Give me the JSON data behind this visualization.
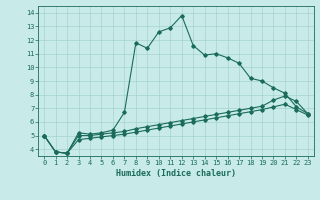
{
  "xlabel": "Humidex (Indice chaleur)",
  "background_color": "#c8ebe9",
  "grid_color": "#9ecece",
  "line_color": "#1a6b5a",
  "xlim": [
    -0.5,
    23.5
  ],
  "ylim": [
    3.5,
    14.5
  ],
  "xtick_labels": [
    "0",
    "1",
    "2",
    "3",
    "4",
    "5",
    "6",
    "7",
    "8",
    "9",
    "10",
    "11",
    "12",
    "13",
    "14",
    "15",
    "16",
    "17",
    "18",
    "19",
    "20",
    "21",
    "22",
    "23"
  ],
  "xtick_positions": [
    0,
    1,
    2,
    3,
    4,
    5,
    6,
    7,
    8,
    9,
    10,
    11,
    12,
    13,
    14,
    15,
    16,
    17,
    18,
    19,
    20,
    21,
    22,
    23
  ],
  "ytick_positions": [
    4,
    5,
    6,
    7,
    8,
    9,
    10,
    11,
    12,
    13,
    14
  ],
  "ytick_labels": [
    "4",
    "5",
    "6",
    "7",
    "8",
    "9",
    "10",
    "11",
    "12",
    "13",
    "14"
  ],
  "curve1_x": [
    0,
    1,
    2,
    3,
    4,
    5,
    6,
    7,
    8,
    9,
    10,
    11,
    12,
    13,
    14,
    15,
    16,
    17,
    18,
    19,
    20,
    21,
    22,
    23
  ],
  "curve1_y": [
    5.0,
    3.8,
    3.7,
    5.2,
    5.1,
    5.2,
    5.4,
    6.7,
    11.8,
    11.4,
    12.6,
    12.9,
    13.8,
    11.6,
    10.9,
    11.0,
    10.7,
    10.3,
    9.2,
    9.0,
    8.5,
    8.1,
    7.1,
    6.6
  ],
  "curve2_x": [
    0,
    1,
    2,
    3,
    4,
    5,
    6,
    7,
    8,
    9,
    10,
    11,
    12,
    13,
    14,
    15,
    16,
    17,
    18,
    19,
    20,
    21,
    22,
    23
  ],
  "curve2_y": [
    5.0,
    3.8,
    3.7,
    5.0,
    5.0,
    5.1,
    5.2,
    5.3,
    5.5,
    5.65,
    5.8,
    5.95,
    6.1,
    6.25,
    6.4,
    6.55,
    6.7,
    6.85,
    7.0,
    7.15,
    7.6,
    7.9,
    7.5,
    6.6
  ],
  "curve3_x": [
    0,
    1,
    2,
    3,
    4,
    5,
    6,
    7,
    8,
    9,
    10,
    11,
    12,
    13,
    14,
    15,
    16,
    17,
    18,
    19,
    20,
    21,
    22,
    23
  ],
  "curve3_y": [
    5.0,
    3.8,
    3.7,
    4.7,
    4.8,
    4.9,
    5.0,
    5.1,
    5.25,
    5.4,
    5.55,
    5.7,
    5.85,
    6.0,
    6.15,
    6.3,
    6.45,
    6.6,
    6.75,
    6.9,
    7.1,
    7.3,
    6.9,
    6.5
  ],
  "marker": "D",
  "marker_size": 1.8,
  "linewidth": 0.8,
  "tick_fontsize": 5.0,
  "xlabel_fontsize": 6.0
}
